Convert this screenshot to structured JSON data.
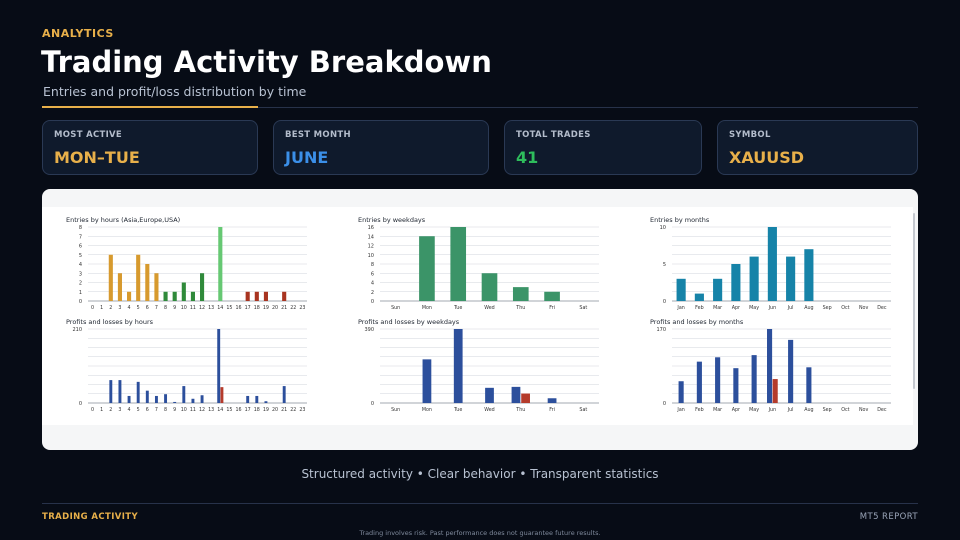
{
  "header": {
    "kicker": "ANALYTICS",
    "title": "Trading Activity Breakdown",
    "subtitle": "Entries and profit/loss distribution by time"
  },
  "stats": [
    {
      "label": "MOST ACTIVE",
      "value": "MON–TUE",
      "color": "#e8b04a"
    },
    {
      "label": "BEST MONTH",
      "value": "JUNE",
      "color": "#3b8fe8"
    },
    {
      "label": "TOTAL TRADES",
      "value": "41",
      "color": "#2ebd5c"
    },
    {
      "label": "SYMBOL",
      "value": "XAUUSD",
      "color": "#e8b04a"
    }
  ],
  "chart_data": [
    {
      "type": "bar",
      "title": "Entries by hours (Asia,Europe,USA)",
      "categories": [
        "0",
        "1",
        "2",
        "3",
        "4",
        "5",
        "6",
        "7",
        "8",
        "9",
        "10",
        "11",
        "12",
        "13",
        "14",
        "15",
        "16",
        "17",
        "18",
        "19",
        "20",
        "21",
        "22",
        "23"
      ],
      "values": [
        0,
        0,
        5,
        3,
        1,
        5,
        4,
        3,
        1,
        1,
        2,
        1,
        3,
        0,
        8,
        0,
        0,
        1,
        1,
        1,
        0,
        1,
        0,
        0
      ],
      "yticks": [
        "0",
        "1",
        "2",
        "3",
        "4",
        "5",
        "6",
        "7",
        "8"
      ],
      "ylim": [
        0,
        8
      ],
      "colors": {
        "Asia": "#d79a2e",
        "Europe": "#2f8a3a",
        "Europe-peak": "#66c873",
        "USA": "#a83420"
      }
    },
    {
      "type": "bar",
      "title": "Entries by weekdays",
      "categories": [
        "Sun",
        "Mon",
        "Tue",
        "Wed",
        "Thu",
        "Fri",
        "Sat"
      ],
      "values": [
        0,
        14,
        16,
        6,
        3,
        2,
        0
      ],
      "yticks": [
        "0",
        "2",
        "4",
        "6",
        "8",
        "10",
        "12",
        "14",
        "16"
      ],
      "ylim": [
        0,
        16
      ],
      "color": "#3b9468"
    },
    {
      "type": "bar",
      "title": "Entries by months",
      "categories": [
        "Jan",
        "Feb",
        "Mar",
        "Apr",
        "May",
        "Jun",
        "Jul",
        "Aug",
        "Sep",
        "Oct",
        "Nov",
        "Dec"
      ],
      "values": [
        3,
        1,
        3,
        5,
        6,
        10,
        6,
        7,
        0,
        0,
        0,
        0
      ],
      "yticks": [
        "0",
        "5",
        "10"
      ],
      "ylim": [
        0,
        10
      ],
      "color": "#1683a8"
    },
    {
      "type": "bar",
      "title": "Profits and losses by hours",
      "categories": [
        "0",
        "1",
        "2",
        "3",
        "4",
        "5",
        "6",
        "7",
        "8",
        "9",
        "10",
        "11",
        "12",
        "13",
        "14",
        "15",
        "16",
        "17",
        "18",
        "19",
        "20",
        "21",
        "22",
        "23"
      ],
      "series": [
        {
          "name": "Profit",
          "values": [
            0,
            0,
            65,
            65,
            20,
            60,
            35,
            20,
            25,
            3,
            48,
            12,
            22,
            0,
            210,
            0,
            0,
            20,
            20,
            5,
            0,
            48,
            0,
            0
          ]
        },
        {
          "name": "Loss",
          "values": [
            0,
            0,
            0,
            0,
            0,
            0,
            0,
            0,
            0,
            0,
            0,
            0,
            0,
            0,
            45,
            0,
            0,
            0,
            0,
            0,
            0,
            0,
            0,
            0
          ]
        }
      ],
      "yticks": [
        "0",
        "210"
      ],
      "ylim": [
        0,
        210
      ],
      "colors": {
        "Profit": "#2c4f9c",
        "Loss": "#b53b2b"
      }
    },
    {
      "type": "bar",
      "title": "Profits and losses by weekdays",
      "categories": [
        "Sun",
        "Mon",
        "Tue",
        "Wed",
        "Thu",
        "Fri",
        "Sat"
      ],
      "series": [
        {
          "name": "Profit",
          "values": [
            0,
            230,
            390,
            80,
            85,
            25,
            0
          ]
        },
        {
          "name": "Loss",
          "values": [
            0,
            0,
            0,
            0,
            50,
            0,
            0
          ]
        }
      ],
      "yticks": [
        "0",
        "390"
      ],
      "ylim": [
        0,
        390
      ],
      "colors": {
        "Profit": "#2c4f9c",
        "Loss": "#b53b2b"
      }
    },
    {
      "type": "bar",
      "title": "Profits and losses by months",
      "categories": [
        "Jan",
        "Feb",
        "Mar",
        "Apr",
        "May",
        "Jun",
        "Jul",
        "Aug",
        "Sep",
        "Oct",
        "Nov",
        "Dec"
      ],
      "series": [
        {
          "name": "Profit",
          "values": [
            50,
            95,
            105,
            80,
            110,
            170,
            145,
            82,
            0,
            0,
            0,
            0
          ]
        },
        {
          "name": "Loss",
          "values": [
            0,
            0,
            0,
            0,
            0,
            55,
            0,
            0,
            0,
            0,
            0,
            0
          ]
        }
      ],
      "yticks": [
        "0",
        "170"
      ],
      "ylim": [
        0,
        170
      ],
      "colors": {
        "Profit": "#2c4f9c",
        "Loss": "#b53b2b"
      }
    }
  ],
  "tagline": "Structured activity • Clear behavior • Transparent statistics",
  "footer": {
    "left": "TRADING ACTIVITY",
    "right": "MT5 REPORT",
    "disclaimer": "Trading involves risk. Past performance does not guarantee future results."
  }
}
